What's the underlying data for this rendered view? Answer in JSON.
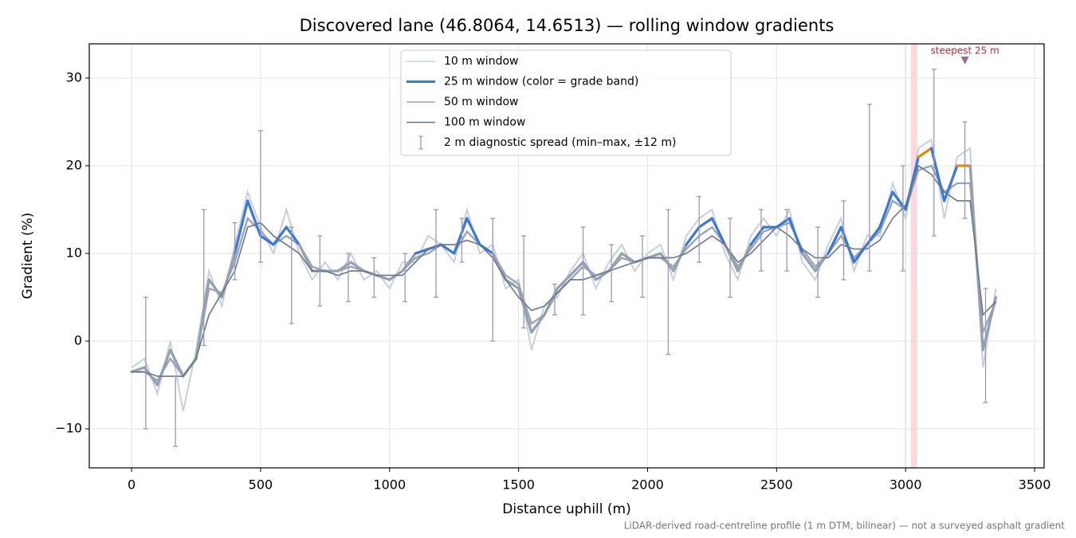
{
  "chart_data": {
    "type": "line",
    "title": "Discovered lane (46.8064, 14.6513) — rolling window gradients",
    "x_label": "Distance uphill (m)",
    "y_label": "Gradient (%)",
    "footnote": "LiDAR-derived road-centreline profile (1 m DTM, bilinear) — not a surveyed asphalt gradient",
    "xlim": [
      -164,
      3537
    ],
    "ylim": [
      -14.45,
      33.9
    ],
    "xticks": [
      0,
      500,
      1000,
      1500,
      2000,
      2500,
      3000,
      3500
    ],
    "yticks": [
      {
        "value": -10,
        "label": "−10"
      },
      0,
      10,
      20,
      30
    ],
    "grid": true,
    "legend": "upper center",
    "x": [
      0,
      50,
      100,
      150,
      200,
      250,
      300,
      350,
      400,
      450,
      500,
      550,
      600,
      650,
      700,
      750,
      800,
      850,
      900,
      950,
      1000,
      1050,
      1100,
      1150,
      1200,
      1250,
      1300,
      1350,
      1400,
      1450,
      1500,
      1550,
      1600,
      1650,
      1700,
      1750,
      1800,
      1850,
      1900,
      1950,
      2000,
      2050,
      2100,
      2150,
      2200,
      2250,
      2300,
      2350,
      2400,
      2450,
      2500,
      2550,
      2600,
      2650,
      2700,
      2750,
      2800,
      2850,
      2900,
      2950,
      3000,
      3050,
      3100,
      3150,
      3200,
      3250,
      3300,
      3350
    ],
    "grade_bands": [
      {
        "max": 10,
        "color": "#94a0b1"
      },
      {
        "max": 20,
        "color": "#3a78d8"
      },
      {
        "max": 100,
        "color": "#e08a00"
      }
    ],
    "series": [
      {
        "name": "10 m window",
        "color": "#c6cfda",
        "values": [
          -3,
          -2,
          -6,
          0,
          -8,
          -1,
          8,
          4,
          11,
          17,
          13,
          10,
          15,
          10,
          7,
          9,
          7,
          10,
          7,
          8,
          6,
          9,
          9,
          12,
          11,
          9,
          15,
          10,
          11,
          6,
          7,
          -1,
          4,
          5,
          8,
          10,
          6,
          9,
          11,
          8,
          10,
          11,
          7,
          12,
          14,
          15,
          10,
          7,
          12,
          14,
          12,
          15,
          9,
          7,
          11,
          14,
          8,
          12,
          12,
          18,
          14,
          22,
          23,
          14,
          21,
          22,
          -3,
          6
        ]
      },
      {
        "name": "25 m window (color = grade band)",
        "values": [
          -3.5,
          -3,
          -5,
          -1,
          -4,
          -2,
          7,
          5,
          10,
          16,
          12,
          11,
          13,
          11,
          8,
          8,
          8,
          9,
          8,
          7.5,
          7,
          8,
          10,
          10.5,
          11,
          10,
          14,
          11,
          10,
          7,
          6,
          1,
          3,
          6,
          7.5,
          9,
          7,
          8,
          10,
          9,
          9.5,
          10,
          8,
          11,
          13,
          14,
          11,
          8,
          11,
          13,
          13,
          14,
          10,
          8,
          10,
          13,
          9,
          11,
          13,
          17,
          15,
          21,
          22,
          16,
          20,
          20,
          -1,
          5
        ]
      },
      {
        "name": "50 m window",
        "color": "#9aa5b5",
        "values": [
          -3.5,
          -3.5,
          -4.5,
          -2,
          -4,
          -2,
          6,
          5.5,
          9,
          14,
          12.5,
          11,
          12,
          11,
          8.5,
          8,
          8,
          8.5,
          8,
          7.5,
          7,
          8,
          9.5,
          10,
          11,
          10,
          12.5,
          11,
          10,
          7.5,
          6.5,
          2,
          3,
          5.5,
          7,
          8.5,
          7.5,
          8,
          9.5,
          9,
          9.5,
          9.5,
          8.5,
          10.5,
          12,
          13,
          11,
          8.5,
          10.5,
          12.5,
          13,
          13.5,
          10.5,
          8.5,
          10,
          12,
          9.5,
          11,
          12.5,
          16,
          15,
          19.5,
          20,
          17,
          18,
          18,
          1,
          4.5
        ]
      },
      {
        "name": "100 m window",
        "color": "#6b7687",
        "values": [
          -3.5,
          -3.5,
          -4,
          -4,
          -4,
          -2,
          3,
          5.5,
          8,
          13,
          13.5,
          12,
          11,
          10,
          8,
          8,
          7.5,
          8,
          8,
          7.5,
          7.5,
          7.5,
          9,
          10.5,
          11,
          11,
          11.5,
          11,
          9.5,
          7,
          5,
          3.5,
          4,
          5.5,
          7,
          7,
          7.5,
          8,
          8.5,
          9,
          9.5,
          9.5,
          9.5,
          10,
          11,
          12,
          11,
          9,
          10,
          11.5,
          13,
          12,
          10.5,
          9.5,
          9.5,
          11,
          10.5,
          10.5,
          11.5,
          14,
          15.5,
          20,
          19,
          17,
          16,
          16,
          3,
          4.5
        ]
      }
    ],
    "error_bars": {
      "name": "2 m diagnostic spread (min–max, ±12 m)",
      "color": "#9a97b8",
      "x": [
        55,
        170,
        280,
        400,
        500,
        620,
        730,
        840,
        940,
        1060,
        1180,
        1280,
        1400,
        1520,
        1640,
        1750,
        1860,
        1980,
        2080,
        2200,
        2320,
        2440,
        2540,
        2660,
        2760,
        2860,
        2990,
        3110,
        3230,
        3310
      ],
      "low": [
        -10,
        -12,
        -0.5,
        7,
        9,
        2,
        4,
        4.5,
        5,
        4.5,
        5,
        9,
        0,
        1.5,
        3,
        3,
        4.5,
        5,
        -1.5,
        9,
        5,
        8,
        8,
        5,
        7,
        8,
        8,
        12,
        14,
        -7
      ],
      "high": [
        5,
        -4,
        15,
        13.5,
        24,
        13,
        12,
        10,
        9.5,
        10,
        15,
        14,
        14,
        12,
        6.5,
        13,
        11,
        12,
        15,
        16.5,
        14,
        15,
        15,
        13,
        16,
        27,
        20,
        31,
        25,
        6
      ]
    },
    "marker_line": 3000,
    "highlight_span": [
      3020,
      3045
    ],
    "steepest": {
      "x": 3230,
      "y": 32,
      "label": "steepest 25 m",
      "color": "#c0283a"
    }
  }
}
